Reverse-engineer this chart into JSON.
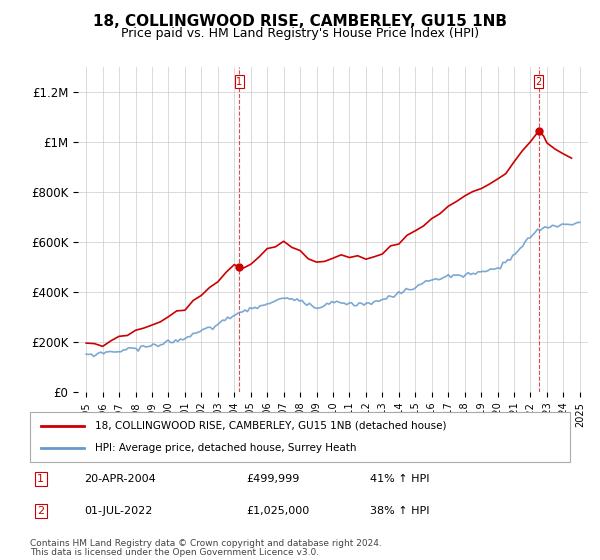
{
  "title": "18, COLLINGWOOD RISE, CAMBERLEY, GU15 1NB",
  "subtitle": "Price paid vs. HM Land Registry's House Price Index (HPI)",
  "red_line_label": "18, COLLINGWOOD RISE, CAMBERLEY, GU15 1NB (detached house)",
  "blue_line_label": "HPI: Average price, detached house, Surrey Heath",
  "annotations": [
    {
      "num": "1",
      "date": "20-APR-2004",
      "price": "£499,999",
      "pct": "41% ↑ HPI",
      "year": 2004.3
    },
    {
      "num": "2",
      "date": "01-JUL-2022",
      "price": "£1,025,000",
      "pct": "38% ↑ HPI",
      "year": 2022.5
    }
  ],
  "footer1": "Contains HM Land Registry data © Crown copyright and database right 2024.",
  "footer2": "This data is licensed under the Open Government Licence v3.0.",
  "ylim": [
    0,
    1300000
  ],
  "xlim": [
    1994.5,
    2025.5
  ],
  "yticks": [
    0,
    200000,
    400000,
    600000,
    800000,
    1000000,
    1200000
  ],
  "ytick_labels": [
    "£0",
    "£200K",
    "£400K",
    "£600K",
    "£800K",
    "£1M",
    "£1.2M"
  ],
  "background_color": "#ffffff",
  "grid_color": "#cccccc",
  "red_color": "#cc0000",
  "blue_color": "#6699cc",
  "marker_color": "#cc0000",
  "years_red": [
    1995,
    1995.5,
    1996,
    1996.5,
    1997,
    1997.5,
    1998,
    1998.5,
    1999,
    1999.5,
    2000,
    2000.5,
    2001,
    2001.5,
    2002,
    2002.5,
    2003,
    2003.5,
    2004,
    2004.3,
    2004.5,
    2005,
    2005.5,
    2006,
    2006.5,
    2007,
    2007.5,
    2008,
    2008.5,
    2009,
    2009.5,
    2010,
    2010.5,
    2011,
    2011.5,
    2012,
    2012.5,
    2013,
    2013.5,
    2014,
    2014.5,
    2015,
    2015.5,
    2016,
    2016.5,
    2017,
    2017.5,
    2018,
    2018.5,
    2019,
    2019.5,
    2020,
    2020.5,
    2021,
    2021.5,
    2022,
    2022.5,
    2022.8,
    2023,
    2023.5,
    2024,
    2024.5
  ],
  "red_base": [
    185000,
    188000,
    195000,
    205000,
    218000,
    232000,
    245000,
    255000,
    268000,
    282000,
    298000,
    315000,
    335000,
    358000,
    385000,
    415000,
    450000,
    478000,
    498000,
    499999,
    510000,
    525000,
    538000,
    555000,
    572000,
    590000,
    578000,
    555000,
    535000,
    515000,
    525000,
    540000,
    548000,
    542000,
    535000,
    530000,
    538000,
    555000,
    575000,
    598000,
    622000,
    648000,
    672000,
    698000,
    720000,
    745000,
    765000,
    782000,
    798000,
    815000,
    832000,
    850000,
    878000,
    915000,
    958000,
    1000000,
    1025000,
    1010000,
    998000,
    975000,
    955000,
    940000
  ],
  "blue_ctrl_x": [
    1995,
    1997,
    1999,
    2001,
    2003,
    2004,
    2005,
    2006,
    2007,
    2008,
    2009,
    2010,
    2011,
    2012,
    2013,
    2014,
    2015,
    2016,
    2017,
    2018,
    2019,
    2020,
    2021,
    2022,
    2022.5,
    2023,
    2024,
    2025
  ],
  "blue_ctrl_y": [
    148000,
    165000,
    185000,
    215000,
    270000,
    310000,
    330000,
    355000,
    375000,
    365000,
    340000,
    360000,
    355000,
    350000,
    368000,
    395000,
    420000,
    448000,
    462000,
    468000,
    478000,
    495000,
    545000,
    620000,
    650000,
    660000,
    670000,
    680000
  ]
}
